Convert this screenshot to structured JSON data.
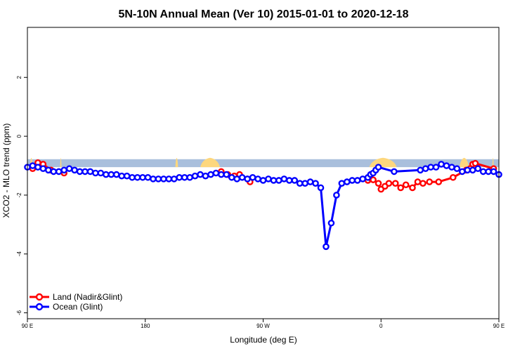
{
  "chart_data": {
    "type": "line",
    "title": "5N-10N Annual Mean (Ver 10)   2015-01-01 to 2020-12-18",
    "xlabel": "Longitude (deg E)",
    "ylabel": "XCO2 - MLO trend (ppm)",
    "xlim": [
      -180,
      180
    ],
    "ylim": [
      -6.2,
      3.7
    ],
    "x_ticks": [
      {
        "value": -180,
        "label": "90 E"
      },
      {
        "value": -90,
        "label": "180"
      },
      {
        "value": 0,
        "label": "90 W"
      },
      {
        "value": 90,
        "label": "0"
      },
      {
        "value": 180,
        "label": "90 E"
      }
    ],
    "y_ticks": [
      {
        "value": 2,
        "label": "2"
      },
      {
        "value": 0,
        "label": "0"
      },
      {
        "value": -2,
        "label": "-2"
      },
      {
        "value": -4,
        "label": "-4"
      },
      {
        "value": -6,
        "label": "-6"
      }
    ],
    "landmask": {
      "ocean_color": "#a9bfdc",
      "land_color": "#fdd77d",
      "y_range": [
        -1.05,
        -0.78
      ],
      "land_segments": [
        [
          -178,
          -176
        ],
        [
          -155,
          -154
        ],
        [
          -67,
          -65
        ],
        [
          -48,
          -33
        ],
        [
          81,
          102
        ],
        [
          150,
          157
        ],
        [
          175,
          176
        ]
      ]
    },
    "series": [
      {
        "name": "Land (Nadir&Glint)",
        "color": "#ff0000",
        "x": [
          -176,
          -172,
          -168,
          -162,
          -152,
          -32,
          -27,
          -22,
          -18,
          -12,
          -10,
          80,
          82,
          84,
          88,
          90,
          93,
          96,
          101,
          105,
          109,
          114,
          118,
          122,
          127,
          134,
          145,
          155,
          158,
          160,
          162,
          176
        ],
        "y": [
          -1.1,
          -0.9,
          -0.95,
          -1.15,
          -1.25,
          -1.2,
          -1.3,
          -1.35,
          -1.3,
          -1.45,
          -1.55,
          -1.5,
          -1.42,
          -1.48,
          -1.6,
          -1.8,
          -1.7,
          -1.6,
          -1.6,
          -1.75,
          -1.65,
          -1.75,
          -1.55,
          -1.6,
          -1.55,
          -1.55,
          -1.4,
          -1.15,
          -1.1,
          -0.95,
          -0.92,
          -1.1
        ],
        "breaks": [
          5,
          11
        ]
      },
      {
        "name": "Ocean (Glint)",
        "color": "#0000ff",
        "x": [
          -180,
          -176,
          -172,
          -168,
          -164,
          -160,
          -156,
          -152,
          -148,
          -144,
          -140,
          -136,
          -132,
          -128,
          -124,
          -120,
          -116,
          -112,
          -108,
          -104,
          -100,
          -96,
          -92,
          -88,
          -84,
          -80,
          -76,
          -72,
          -68,
          -64,
          -60,
          -56,
          -52,
          -48,
          -44,
          -40,
          -36,
          -32,
          -28,
          -24,
          -20,
          -16,
          -12,
          -8,
          -4,
          0,
          4,
          8,
          12,
          16,
          20,
          24,
          28,
          32,
          36,
          40,
          44,
          48,
          52,
          56,
          60,
          64,
          68,
          72,
          76,
          80,
          82,
          84,
          86,
          88,
          100,
          120,
          124,
          128,
          132,
          136,
          140,
          144,
          148,
          152,
          156,
          160,
          164,
          168,
          172,
          176,
          180
        ],
        "y": [
          -1.05,
          -1.0,
          -1.05,
          -1.1,
          -1.15,
          -1.2,
          -1.2,
          -1.15,
          -1.1,
          -1.15,
          -1.2,
          -1.2,
          -1.2,
          -1.25,
          -1.25,
          -1.3,
          -1.3,
          -1.3,
          -1.35,
          -1.35,
          -1.4,
          -1.4,
          -1.4,
          -1.4,
          -1.45,
          -1.45,
          -1.45,
          -1.45,
          -1.45,
          -1.4,
          -1.4,
          -1.4,
          -1.35,
          -1.3,
          -1.35,
          -1.3,
          -1.25,
          -1.3,
          -1.3,
          -1.4,
          -1.45,
          -1.4,
          -1.45,
          -1.4,
          -1.45,
          -1.5,
          -1.45,
          -1.5,
          -1.5,
          -1.45,
          -1.5,
          -1.5,
          -1.6,
          -1.6,
          -1.55,
          -1.6,
          -1.75,
          -3.75,
          -2.95,
          -2.0,
          -1.6,
          -1.55,
          -1.5,
          -1.5,
          -1.45,
          -1.4,
          -1.3,
          -1.25,
          -1.15,
          -1.05,
          -1.2,
          -1.15,
          -1.1,
          -1.05,
          -1.05,
          -0.95,
          -1.0,
          -1.05,
          -1.1,
          -1.2,
          -1.15,
          -1.15,
          -1.1,
          -1.2,
          -1.2,
          -1.2,
          -1.3
        ],
        "breaks": [
          69
        ]
      }
    ],
    "legend": {
      "position": "bottom-left",
      "entries": [
        "Land (Nadir&Glint)",
        "Ocean (Glint)"
      ]
    }
  }
}
